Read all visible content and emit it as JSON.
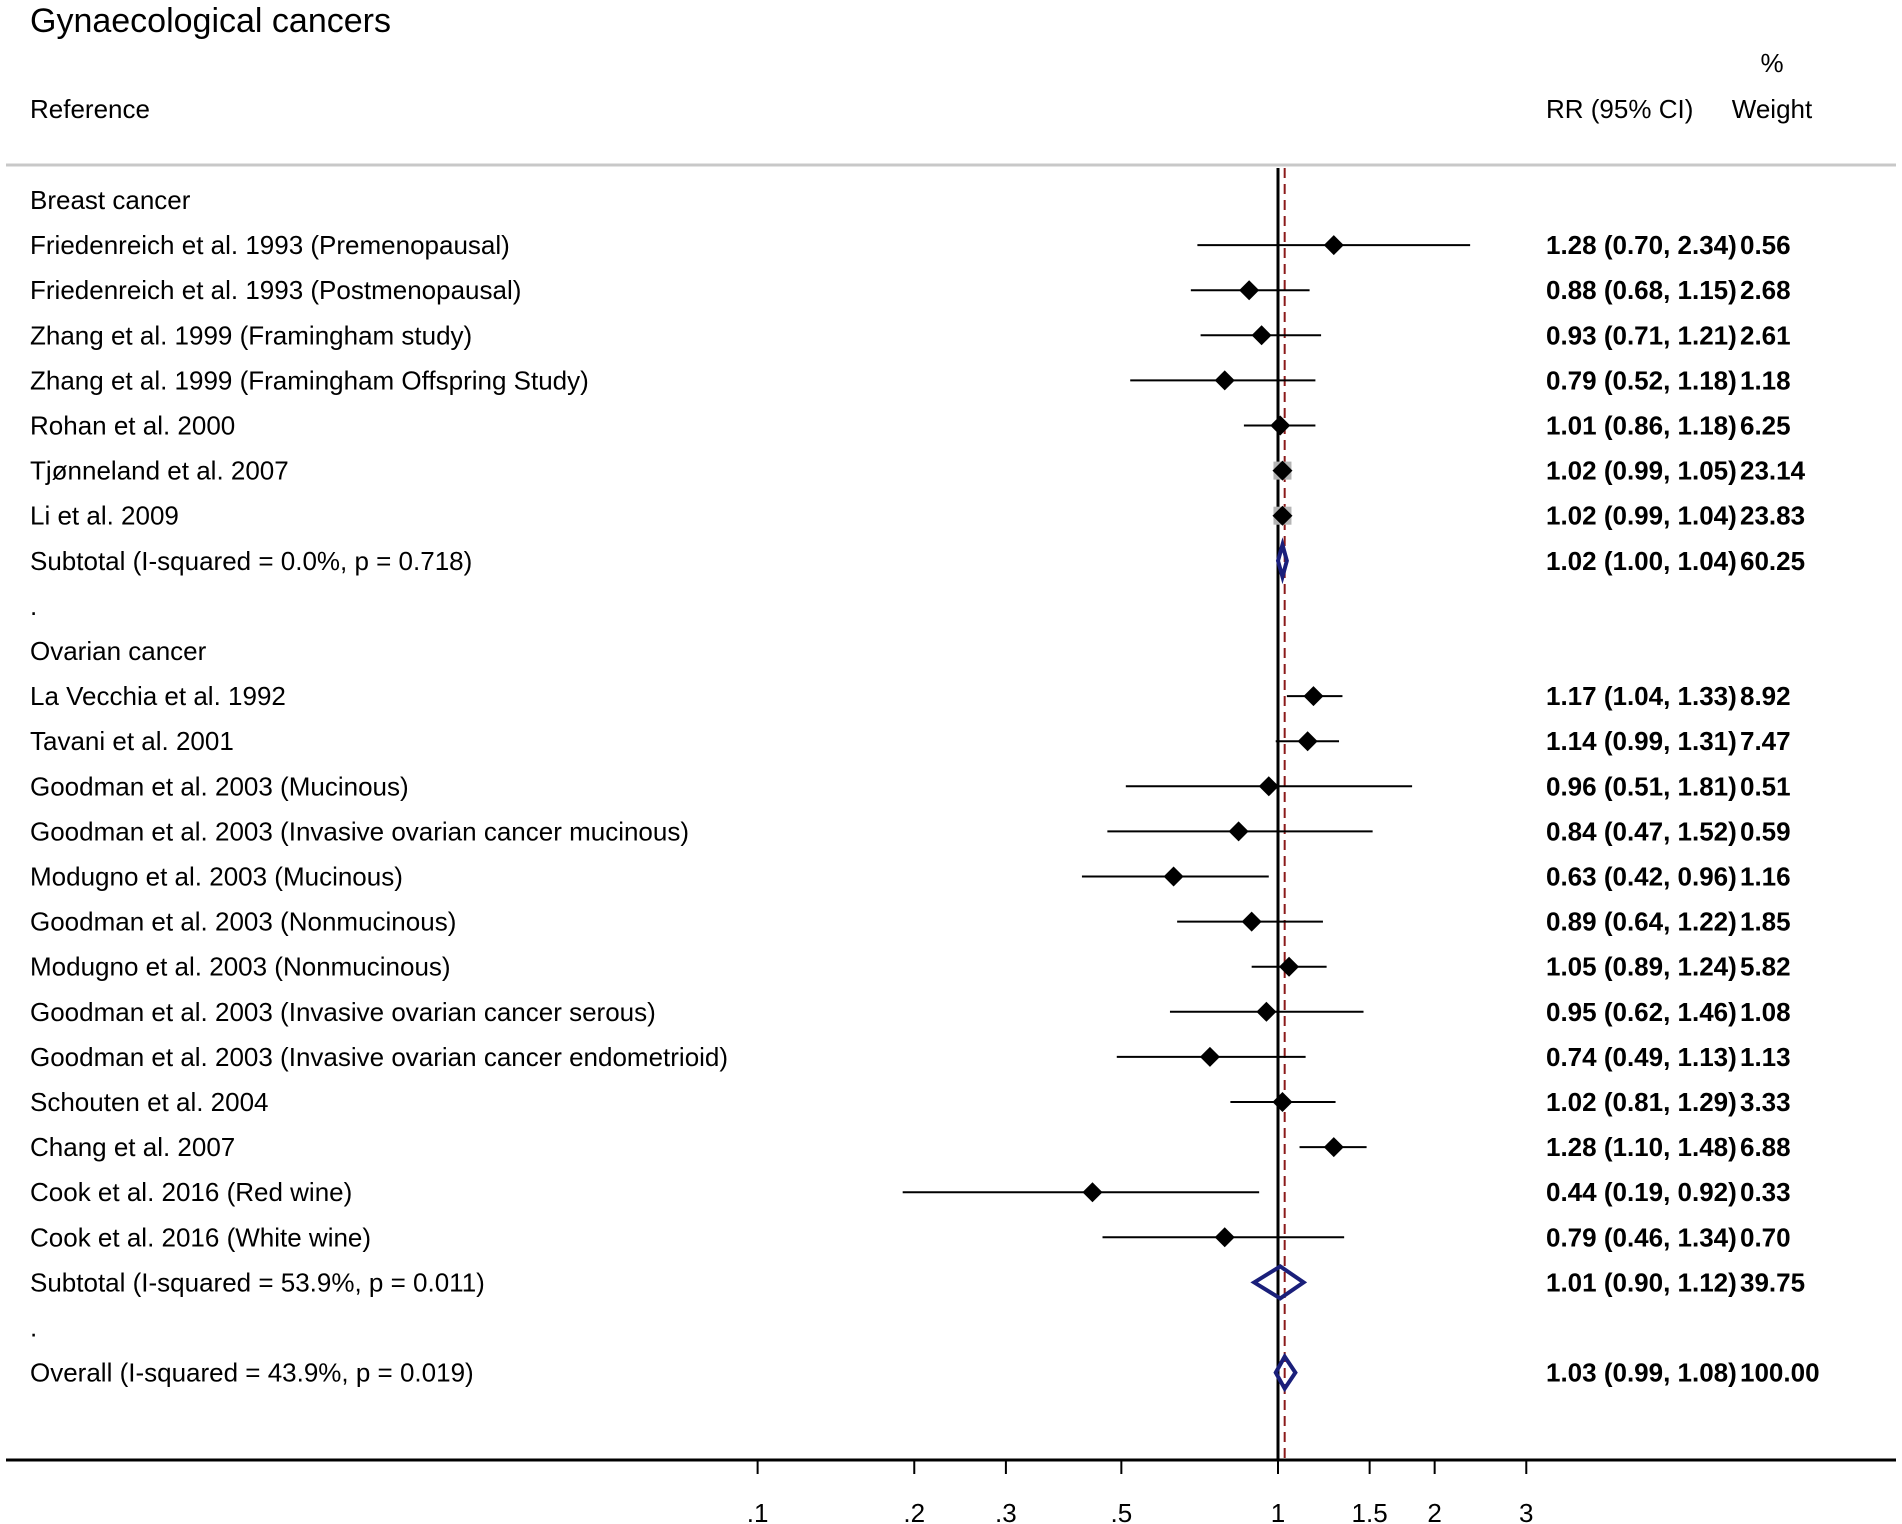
{
  "chart_data": {
    "type": "forest",
    "title": "Gynaecological cancers",
    "columns": {
      "reference": "Reference",
      "effect": "RR (95% CI)",
      "weight_line1": "%",
      "weight_line2": "Weight"
    },
    "x_scale": "log",
    "xlim": [
      0.1,
      3
    ],
    "x_ticks": [
      {
        "value": 0.1,
        "label": ".1"
      },
      {
        "value": 0.2,
        "label": ".2"
      },
      {
        "value": 0.3,
        "label": ".3"
      },
      {
        "value": 0.5,
        "label": ".5"
      },
      {
        "value": 1,
        "label": "1"
      },
      {
        "value": 1.5,
        "label": "1.5"
      },
      {
        "value": 2,
        "label": "2"
      },
      {
        "value": 3,
        "label": "3"
      }
    ],
    "reference_line": 1,
    "overall_line": 1.03,
    "rows": [
      {
        "type": "header",
        "label": "Breast cancer"
      },
      {
        "type": "study",
        "label": "Friedenreich et al. 1993 (Premenopausal)",
        "rr": 1.28,
        "lo": 0.7,
        "hi": 2.34,
        "ci_text": "1.28 (0.70, 2.34)",
        "weight": "0.56"
      },
      {
        "type": "study",
        "label": "Friedenreich et al. 1993 (Postmenopausal)",
        "rr": 0.88,
        "lo": 0.68,
        "hi": 1.15,
        "ci_text": "0.88 (0.68, 1.15)",
        "weight": "2.68"
      },
      {
        "type": "study",
        "label": "Zhang et al. 1999 (Framingham study)",
        "rr": 0.93,
        "lo": 0.71,
        "hi": 1.21,
        "ci_text": "0.93 (0.71, 1.21)",
        "weight": "2.61"
      },
      {
        "type": "study",
        "label": "Zhang et al. 1999 (Framingham Offspring Study)",
        "rr": 0.79,
        "lo": 0.52,
        "hi": 1.18,
        "ci_text": "0.79 (0.52, 1.18)",
        "weight": "1.18"
      },
      {
        "type": "study",
        "label": "Rohan et al. 2000",
        "rr": 1.01,
        "lo": 0.86,
        "hi": 1.18,
        "ci_text": "1.01 (0.86, 1.18)",
        "weight": "6.25"
      },
      {
        "type": "study",
        "label": "Tjønneland et al. 2007",
        "rr": 1.02,
        "lo": 0.99,
        "hi": 1.05,
        "ci_text": "1.02 (0.99, 1.05)",
        "weight": "23.14"
      },
      {
        "type": "study",
        "label": "Li et al. 2009",
        "rr": 1.02,
        "lo": 0.99,
        "hi": 1.04,
        "ci_text": "1.02 (0.99, 1.04)",
        "weight": "23.83"
      },
      {
        "type": "subtotal",
        "label": "Subtotal  (I-squared = 0.0%, p = 0.718)",
        "rr": 1.02,
        "lo": 1.0,
        "hi": 1.04,
        "ci_text": "1.02 (1.00, 1.04)",
        "weight": "60.25"
      },
      {
        "type": "spacer",
        "label": "."
      },
      {
        "type": "header",
        "label": "Ovarian cancer"
      },
      {
        "type": "study",
        "label": "La Vecchia et al. 1992",
        "rr": 1.17,
        "lo": 1.04,
        "hi": 1.33,
        "ci_text": "1.17 (1.04, 1.33)",
        "weight": "8.92"
      },
      {
        "type": "study",
        "label": "Tavani et al. 2001",
        "rr": 1.14,
        "lo": 0.99,
        "hi": 1.31,
        "ci_text": "1.14 (0.99, 1.31)",
        "weight": "7.47"
      },
      {
        "type": "study",
        "label": "Goodman et al. 2003  (Mucinous)",
        "rr": 0.96,
        "lo": 0.51,
        "hi": 1.81,
        "ci_text": "0.96 (0.51, 1.81)",
        "weight": "0.51"
      },
      {
        "type": "study",
        "label": "Goodman et al. 2003 (Invasive ovarian cancer mucinous)",
        "rr": 0.84,
        "lo": 0.47,
        "hi": 1.52,
        "ci_text": "0.84 (0.47, 1.52)",
        "weight": "0.59"
      },
      {
        "type": "study",
        "label": "Modugno et al. 2003  (Mucinous)",
        "rr": 0.63,
        "lo": 0.42,
        "hi": 0.96,
        "ci_text": "0.63 (0.42, 0.96)",
        "weight": "1.16"
      },
      {
        "type": "study",
        "label": "Goodman et al. 2003 (Nonmucinous)",
        "rr": 0.89,
        "lo": 0.64,
        "hi": 1.22,
        "ci_text": "0.89 (0.64, 1.22)",
        "weight": "1.85"
      },
      {
        "type": "study",
        "label": "Modugno et al. 2003 (Nonmucinous)",
        "rr": 1.05,
        "lo": 0.89,
        "hi": 1.24,
        "ci_text": "1.05 (0.89, 1.24)",
        "weight": "5.82"
      },
      {
        "type": "study",
        "label": "Goodman et al. 2003 (Invasive ovarian cancer serous)",
        "rr": 0.95,
        "lo": 0.62,
        "hi": 1.46,
        "ci_text": "0.95 (0.62, 1.46)",
        "weight": "1.08"
      },
      {
        "type": "study",
        "label": "Goodman et al. 2003 (Invasive ovarian cancer endometrioid)",
        "rr": 0.74,
        "lo": 0.49,
        "hi": 1.13,
        "ci_text": "0.74 (0.49, 1.13)",
        "weight": "1.13"
      },
      {
        "type": "study",
        "label": "Schouten et al. 2004",
        "rr": 1.02,
        "lo": 0.81,
        "hi": 1.29,
        "ci_text": "1.02 (0.81, 1.29)",
        "weight": "3.33"
      },
      {
        "type": "study",
        "label": "Chang et al. 2007",
        "rr": 1.28,
        "lo": 1.1,
        "hi": 1.48,
        "ci_text": "1.28 (1.10, 1.48)",
        "weight": "6.88"
      },
      {
        "type": "study",
        "label": "Cook et al. 2016 (Red wine)",
        "rr": 0.44,
        "lo": 0.19,
        "hi": 0.92,
        "ci_text": "0.44 (0.19, 0.92)",
        "weight": "0.33"
      },
      {
        "type": "study",
        "label": "Cook et al. 2016 (White wine)",
        "rr": 0.79,
        "lo": 0.46,
        "hi": 1.34,
        "ci_text": "0.79 (0.46, 1.34)",
        "weight": "0.70"
      },
      {
        "type": "subtotal",
        "label": "Subtotal  (I-squared = 53.9%, p = 0.011)",
        "rr": 1.01,
        "lo": 0.9,
        "hi": 1.12,
        "ci_text": "1.01 (0.90, 1.12)",
        "weight": "39.75"
      },
      {
        "type": "spacer",
        "label": "."
      },
      {
        "type": "overall",
        "label": "Overall  (I-squared = 43.9%, p = 0.019)",
        "rr": 1.03,
        "lo": 0.99,
        "hi": 1.08,
        "ci_text": "1.03 (0.99, 1.08)",
        "weight": "100.00"
      }
    ],
    "colors": {
      "ink": "#000000",
      "summary_diamond": "#1a1f7a",
      "overall_line": "#8b1a1a",
      "separator": "#c8c8c8"
    }
  }
}
